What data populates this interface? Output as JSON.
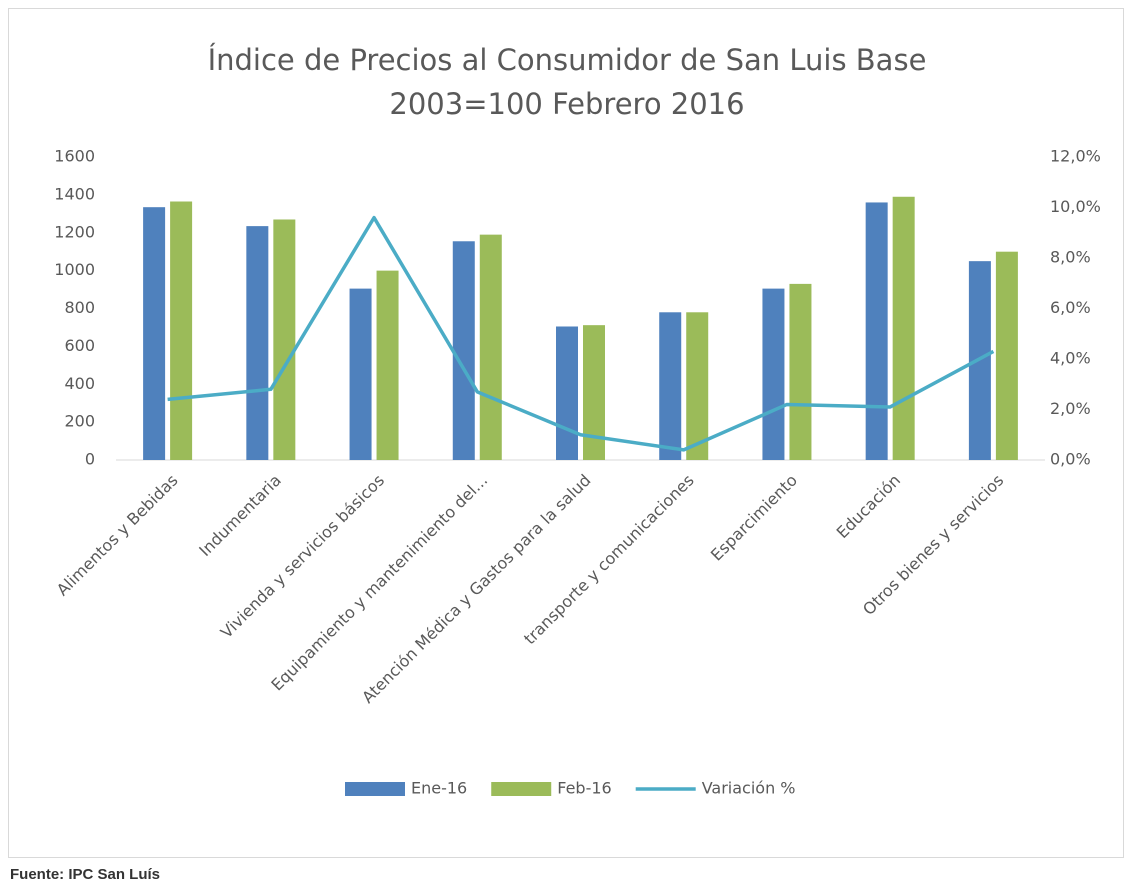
{
  "chart_data": {
    "type": "bar",
    "title": "Índice de Precios al Consumidor de San Luis Base 2003=100 Febrero 2016",
    "categories": [
      "Alimentos y Bebidas",
      "Indumentaria",
      "Vivienda y servicios básicos",
      "Equipamiento y mantenimiento del...",
      "Atención Médica y Gastos para la salud",
      "transporte y comunicaciones",
      "Esparcimiento",
      "Educación",
      "Otros bienes y servicios"
    ],
    "series": [
      {
        "name": "Ene-16",
        "type": "bar",
        "color": "#4f81bd",
        "values": [
          1335,
          1235,
          905,
          1155,
          705,
          780,
          905,
          1360,
          1050
        ]
      },
      {
        "name": "Feb-16",
        "type": "bar",
        "color": "#9bbb59",
        "values": [
          1365,
          1270,
          1000,
          1190,
          712,
          780,
          930,
          1390,
          1100
        ]
      },
      {
        "name": "Variación %",
        "type": "line",
        "axis": "y2",
        "color": "#4bacc6",
        "values": [
          2.4,
          2.8,
          9.6,
          2.7,
          1.0,
          0.4,
          2.2,
          2.1,
          4.3
        ]
      }
    ],
    "ylim": [
      0,
      1600
    ],
    "yticks": [
      0,
      200,
      400,
      600,
      800,
      1000,
      1200,
      1400,
      1600
    ],
    "y2lim": [
      0,
      12
    ],
    "y2ticks": [
      {
        "value": 0,
        "label": "0,0%"
      },
      {
        "value": 2,
        "label": "2,0%"
      },
      {
        "value": 4,
        "label": "4,0%"
      },
      {
        "value": 6,
        "label": "6,0%"
      },
      {
        "value": 8,
        "label": "8,0%"
      },
      {
        "value": 10,
        "label": "10,0%"
      },
      {
        "value": 12,
        "label": "12,0%"
      }
    ],
    "grid": false,
    "legend": "bottom",
    "source": "Fuente: IPC San Luís"
  }
}
